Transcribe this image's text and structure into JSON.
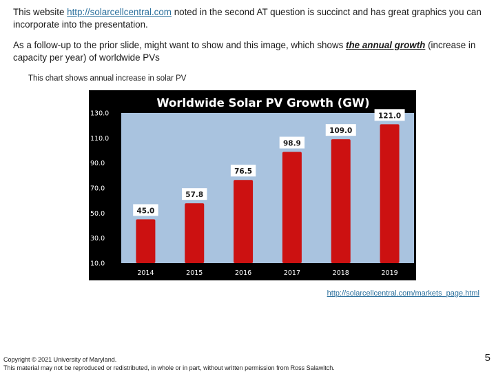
{
  "paragraph1": {
    "before": "This website ",
    "link": "http://solarcellcentral.com",
    "after": " noted in the second AT question is succinct and has great graphics you can incorporate into the presentation."
  },
  "paragraph2": {
    "before": "As a follow-up to the prior slide, might want to show and this image, which shows ",
    "emphasis": "the annual growth",
    "after": " (increase in capacity per year) of worldwide PVs"
  },
  "caption": "This chart shows annual increase in solar PV",
  "source_link": "http://solarcellcentral.com/markets_page.html",
  "footer": {
    "copyright": "Copyright © 2021 University of Maryland.",
    "notice": "This material may not be reproduced or redistributed, in whole or in part, without written permission from Ross Salawitch.",
    "page_number": "5"
  },
  "colors": {
    "link": "#2a6f9c",
    "chart_frame": "#000000",
    "plot_bg": "#a9c3df",
    "bar": "#cc1111",
    "title_text": "#ffffff"
  },
  "chart_data": {
    "type": "bar",
    "title": "Worldwide  Solar PV Growth (GW)",
    "categories": [
      "2014",
      "2015",
      "2016",
      "2017",
      "2018",
      "2019"
    ],
    "values": [
      45.0,
      57.8,
      76.5,
      98.9,
      109.0,
      121.0
    ],
    "value_labels": [
      "45.0",
      "57.8",
      "76.5",
      "98.9",
      "109.0",
      "121.0"
    ],
    "ylim": [
      10,
      130
    ],
    "yticks": [
      "10.0",
      "30.0",
      "50.0",
      "70.0",
      "90.0",
      "110.0",
      "130.0"
    ],
    "xlabel": "",
    "ylabel": "",
    "grid": false,
    "legend": false
  }
}
